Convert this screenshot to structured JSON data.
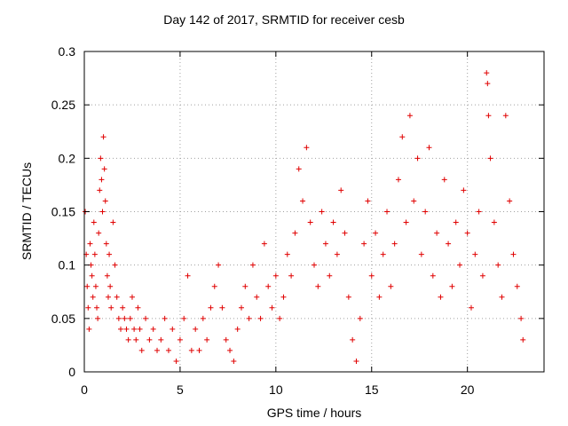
{
  "chart_data": {
    "type": "scatter",
    "title": "Day 142 of 2017, SRMTID for receiver cesb",
    "xlabel": "GPS time / hours",
    "ylabel": "SRMTID / TECUs",
    "xlim": [
      0,
      24
    ],
    "ylim": [
      0,
      0.3
    ],
    "x_ticks": [
      0,
      5,
      10,
      15,
      20
    ],
    "x_tick_labels": [
      "0",
      "5",
      "10",
      "15",
      "20"
    ],
    "y_ticks": [
      0,
      0.05,
      0.1,
      0.15,
      0.2,
      0.25,
      0.3
    ],
    "y_tick_labels": [
      "0",
      "0.05",
      "0.1",
      "0.15",
      "0.2",
      "0.25",
      "0.3"
    ],
    "grid": true,
    "marker": "plus",
    "color": "#e00000",
    "series": [
      {
        "name": "SRMTID",
        "points": [
          [
            0.05,
            0.15
          ],
          [
            0.1,
            0.11
          ],
          [
            0.15,
            0.08
          ],
          [
            0.2,
            0.06
          ],
          [
            0.25,
            0.04
          ],
          [
            0.3,
            0.12
          ],
          [
            0.35,
            0.1
          ],
          [
            0.4,
            0.09
          ],
          [
            0.45,
            0.07
          ],
          [
            0.5,
            0.14
          ],
          [
            0.55,
            0.11
          ],
          [
            0.6,
            0.08
          ],
          [
            0.65,
            0.06
          ],
          [
            0.7,
            0.05
          ],
          [
            0.75,
            0.13
          ],
          [
            0.8,
            0.17
          ],
          [
            0.85,
            0.2
          ],
          [
            0.9,
            0.18
          ],
          [
            0.95,
            0.15
          ],
          [
            1.0,
            0.22
          ],
          [
            1.05,
            0.19
          ],
          [
            1.1,
            0.16
          ],
          [
            1.15,
            0.12
          ],
          [
            1.2,
            0.09
          ],
          [
            1.25,
            0.07
          ],
          [
            1.3,
            0.11
          ],
          [
            1.35,
            0.08
          ],
          [
            1.4,
            0.06
          ],
          [
            1.5,
            0.14
          ],
          [
            1.6,
            0.1
          ],
          [
            1.7,
            0.07
          ],
          [
            1.8,
            0.05
          ],
          [
            1.9,
            0.04
          ],
          [
            2.0,
            0.06
          ],
          [
            2.1,
            0.05
          ],
          [
            2.2,
            0.04
          ],
          [
            2.3,
            0.03
          ],
          [
            2.4,
            0.05
          ],
          [
            2.5,
            0.07
          ],
          [
            2.6,
            0.04
          ],
          [
            2.7,
            0.03
          ],
          [
            2.8,
            0.06
          ],
          [
            2.9,
            0.04
          ],
          [
            3.0,
            0.02
          ],
          [
            3.2,
            0.05
          ],
          [
            3.4,
            0.03
          ],
          [
            3.6,
            0.04
          ],
          [
            3.8,
            0.02
          ],
          [
            4.0,
            0.03
          ],
          [
            4.2,
            0.05
          ],
          [
            4.4,
            0.02
          ],
          [
            4.6,
            0.04
          ],
          [
            4.8,
            0.01
          ],
          [
            5.0,
            0.03
          ],
          [
            5.2,
            0.05
          ],
          [
            5.4,
            0.09
          ],
          [
            5.6,
            0.02
          ],
          [
            5.8,
            0.04
          ],
          [
            6.0,
            0.02
          ],
          [
            6.2,
            0.05
          ],
          [
            6.4,
            0.03
          ],
          [
            6.6,
            0.06
          ],
          [
            6.8,
            0.08
          ],
          [
            7.0,
            0.1
          ],
          [
            7.2,
            0.06
          ],
          [
            7.4,
            0.03
          ],
          [
            7.6,
            0.02
          ],
          [
            7.8,
            0.01
          ],
          [
            8.0,
            0.04
          ],
          [
            8.2,
            0.06
          ],
          [
            8.4,
            0.08
          ],
          [
            8.6,
            0.05
          ],
          [
            8.8,
            0.1
          ],
          [
            9.0,
            0.07
          ],
          [
            9.2,
            0.05
          ],
          [
            9.4,
            0.12
          ],
          [
            9.6,
            0.08
          ],
          [
            9.8,
            0.06
          ],
          [
            10.0,
            0.09
          ],
          [
            10.2,
            0.05
          ],
          [
            10.4,
            0.07
          ],
          [
            10.6,
            0.11
          ],
          [
            10.8,
            0.09
          ],
          [
            11.0,
            0.13
          ],
          [
            11.2,
            0.19
          ],
          [
            11.4,
            0.16
          ],
          [
            11.6,
            0.21
          ],
          [
            11.8,
            0.14
          ],
          [
            12.0,
            0.1
          ],
          [
            12.2,
            0.08
          ],
          [
            12.4,
            0.15
          ],
          [
            12.6,
            0.12
          ],
          [
            12.8,
            0.09
          ],
          [
            13.0,
            0.14
          ],
          [
            13.2,
            0.11
          ],
          [
            13.4,
            0.17
          ],
          [
            13.6,
            0.13
          ],
          [
            13.8,
            0.07
          ],
          [
            14.0,
            0.03
          ],
          [
            14.2,
            0.01
          ],
          [
            14.4,
            0.05
          ],
          [
            14.6,
            0.12
          ],
          [
            14.8,
            0.16
          ],
          [
            15.0,
            0.09
          ],
          [
            15.2,
            0.13
          ],
          [
            15.4,
            0.07
          ],
          [
            15.6,
            0.11
          ],
          [
            15.8,
            0.15
          ],
          [
            16.0,
            0.08
          ],
          [
            16.2,
            0.12
          ],
          [
            16.4,
            0.18
          ],
          [
            16.6,
            0.22
          ],
          [
            16.8,
            0.14
          ],
          [
            17.0,
            0.24
          ],
          [
            17.2,
            0.16
          ],
          [
            17.4,
            0.2
          ],
          [
            17.6,
            0.11
          ],
          [
            17.8,
            0.15
          ],
          [
            18.0,
            0.21
          ],
          [
            18.2,
            0.09
          ],
          [
            18.4,
            0.13
          ],
          [
            18.6,
            0.07
          ],
          [
            18.8,
            0.18
          ],
          [
            19.0,
            0.12
          ],
          [
            19.2,
            0.08
          ],
          [
            19.4,
            0.14
          ],
          [
            19.6,
            0.1
          ],
          [
            19.8,
            0.17
          ],
          [
            20.0,
            0.13
          ],
          [
            20.2,
            0.06
          ],
          [
            20.4,
            0.11
          ],
          [
            20.6,
            0.15
          ],
          [
            20.8,
            0.09
          ],
          [
            21.0,
            0.28
          ],
          [
            21.05,
            0.27
          ],
          [
            21.1,
            0.24
          ],
          [
            21.2,
            0.2
          ],
          [
            21.4,
            0.14
          ],
          [
            21.6,
            0.1
          ],
          [
            21.8,
            0.07
          ],
          [
            22.0,
            0.24
          ],
          [
            22.2,
            0.16
          ],
          [
            22.4,
            0.11
          ],
          [
            22.6,
            0.08
          ],
          [
            22.8,
            0.05
          ],
          [
            22.9,
            0.03
          ]
        ]
      }
    ]
  }
}
